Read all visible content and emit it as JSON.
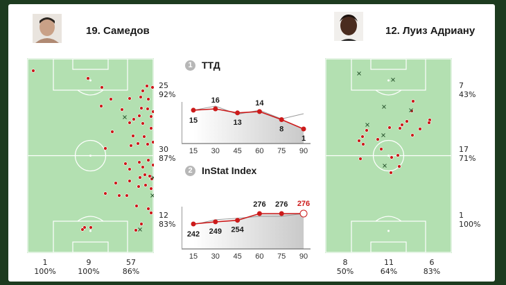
{
  "colors": {
    "pitch": "#b3e0b1",
    "pitch_line": "#ffffff",
    "action_dot": "#cc1a1a",
    "cross": "#2d5a32",
    "chart_line": "#cc1a1a",
    "chart_band": "#9a9a9a",
    "highlight_value": "#cc1a1a"
  },
  "left_player": {
    "title": "19. Самедов",
    "avatar": "player-photo",
    "zone_stats": [
      {
        "count": "25",
        "pct": "92%"
      },
      {
        "count": "30",
        "pct": "87%"
      },
      {
        "count": "12",
        "pct": "83%"
      }
    ],
    "lane_stats": [
      {
        "count": "1",
        "pct": "100%"
      },
      {
        "count": "9",
        "pct": "100%"
      },
      {
        "count": "57",
        "pct": "86%"
      }
    ]
  },
  "right_player": {
    "title": "12. Луиз Адриану",
    "avatar": "player-photo",
    "zone_stats": [
      {
        "count": "7",
        "pct": "43%"
      },
      {
        "count": "17",
        "pct": "71%"
      },
      {
        "count": "1",
        "pct": "100%"
      }
    ],
    "lane_stats": [
      {
        "count": "8",
        "pct": "50%"
      },
      {
        "count": "11",
        "pct": "64%"
      },
      {
        "count": "6",
        "pct": "83%"
      }
    ]
  },
  "sections": {
    "ttd": {
      "number": "1",
      "title": "ТТД"
    },
    "instat": {
      "number": "2",
      "title": "InStat Index"
    }
  },
  "chart_data": [
    {
      "type": "line",
      "title": "ТТД",
      "x": [
        15,
        30,
        45,
        60,
        75,
        90
      ],
      "xticks": [
        "15",
        "30",
        "45",
        "60",
        "75",
        "90"
      ],
      "series": [
        {
          "values": [
            15,
            16,
            13,
            14,
            8,
            1
          ]
        }
      ],
      "point_labels": [
        "15",
        "16",
        "13",
        "14",
        "8",
        "1"
      ],
      "grid": false
    },
    {
      "type": "line",
      "title": "InStat Index",
      "x": [
        15,
        30,
        45,
        60,
        75,
        90
      ],
      "xticks": [
        "15",
        "30",
        "45",
        "60",
        "75",
        "90"
      ],
      "series": [
        {
          "values": [
            242,
            249,
            254,
            276,
            276,
            276
          ]
        }
      ],
      "point_labels": [
        "242",
        "249",
        "254",
        "276",
        "276",
        "276"
      ],
      "grid": false
    }
  ]
}
